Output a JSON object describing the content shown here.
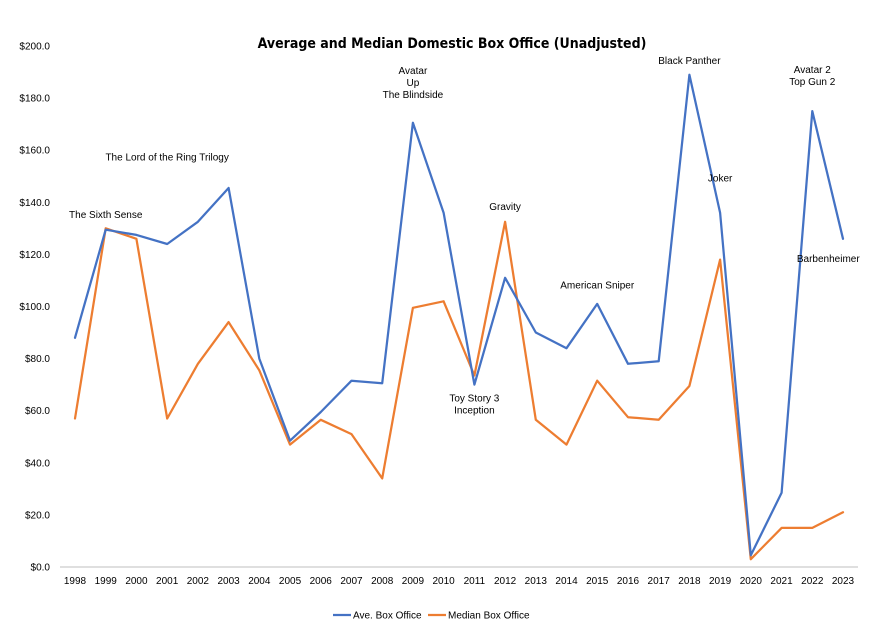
{
  "chart_data": {
    "type": "line",
    "title": "Average and Median Domestic Box Office (Unadjusted)",
    "xlabel": "",
    "ylabel": "",
    "ylim": [
      0,
      200
    ],
    "y_ticks": [
      "$0.0",
      "$20.0",
      "$40.0",
      "$60.0",
      "$80.0",
      "$100.0",
      "$120.0",
      "$140.0",
      "$160.0",
      "$180.0",
      "$200.0"
    ],
    "categories": [
      "1998",
      "1999",
      "2000",
      "2001",
      "2002",
      "2003",
      "2004",
      "2005",
      "2006",
      "2007",
      "2008",
      "2009",
      "2010",
      "2011",
      "2012",
      "2013",
      "2014",
      "2015",
      "2016",
      "2017",
      "2018",
      "2019",
      "2020",
      "2021",
      "2022",
      "2023"
    ],
    "series": [
      {
        "name": "Ave. Box Office",
        "color": "#4472C4",
        "values": [
          88.0,
          129.5,
          127.5,
          124.0,
          132.5,
          145.5,
          80.0,
          48.5,
          59.5,
          71.5,
          70.5,
          170.5,
          136.0,
          70.0,
          111.0,
          90.0,
          84.0,
          101.0,
          78.0,
          79.0,
          189.0,
          136.0,
          4.5,
          28.5,
          175.0,
          126.0
        ]
      },
      {
        "name": "Median Box Office",
        "color": "#ED7D31",
        "values": [
          57.0,
          130.0,
          126.0,
          57.0,
          78.0,
          94.0,
          75.5,
          47.0,
          56.5,
          51.0,
          34.0,
          99.5,
          102.0,
          73.5,
          132.5,
          56.5,
          47.0,
          71.5,
          57.5,
          56.5,
          69.5,
          118.0,
          3.0,
          15.0,
          15.0,
          21.0
        ]
      }
    ],
    "annotations": [
      {
        "lines": [
          "The Sixth Sense"
        ],
        "year": "1999",
        "value": 134
      },
      {
        "lines": [
          "The Lord of the Ring Trilogy"
        ],
        "year": "2001",
        "value": 156
      },
      {
        "lines": [
          "Avatar",
          "Up",
          "The Blindside"
        ],
        "year": "2009",
        "value": 180
      },
      {
        "lines": [
          "Gravity"
        ],
        "year": "2012",
        "value": 137
      },
      {
        "lines": [
          "Toy Story 3",
          "Inception"
        ],
        "year": "2011",
        "value": 59
      },
      {
        "lines": [
          "American Sniper"
        ],
        "year": "2015",
        "value": 107
      },
      {
        "lines": [
          "Black Panther"
        ],
        "year": "2018",
        "value": 193
      },
      {
        "lines": [
          "Joker"
        ],
        "year": "2019",
        "value": 148
      },
      {
        "lines": [
          "Avatar 2",
          "Top Gun 2"
        ],
        "year": "2022",
        "value": 185
      },
      {
        "lines": [
          "Barbenheimer"
        ],
        "year": "2022",
        "value": 117,
        "offset": 16
      }
    ],
    "legend": {
      "position": "bottom"
    },
    "grid": false
  }
}
